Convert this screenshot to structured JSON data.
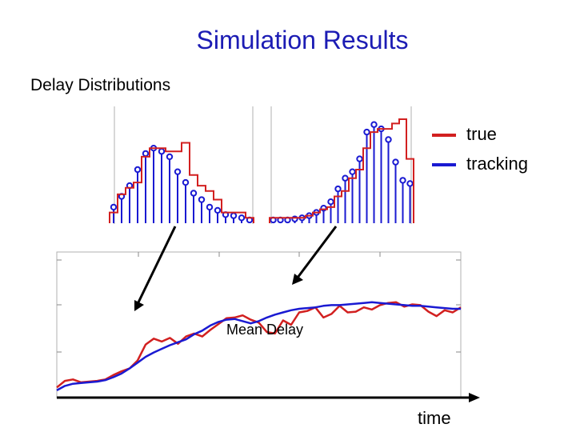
{
  "title": "Simulation Results",
  "section_label": "Delay Distributions",
  "colors": {
    "title": "#1c1cb4",
    "true": "#d22020",
    "tracking": "#1a1ad2"
  },
  "chart_data": [
    {
      "name": "delay-distribution-left",
      "type": "histogram-stem",
      "bins": [
        1,
        2,
        3,
        4,
        5,
        6,
        7,
        8,
        9,
        10,
        11,
        12,
        13,
        14,
        15,
        16,
        17,
        18
      ],
      "true_values": [
        10,
        27,
        33,
        38,
        62,
        70,
        70,
        67,
        67,
        75,
        45,
        35,
        30,
        22,
        10,
        10,
        10,
        5
      ],
      "tracking_values": [
        15,
        25,
        35,
        50,
        65,
        70,
        67,
        62,
        48,
        38,
        28,
        22,
        15,
        12,
        8,
        7,
        5,
        3
      ],
      "ylim": [
        0,
        100
      ]
    },
    {
      "name": "delay-distribution-right",
      "type": "histogram-stem",
      "bins": [
        1,
        2,
        3,
        4,
        5,
        6,
        7,
        8,
        9,
        10,
        11,
        12,
        13,
        14,
        15,
        16,
        17,
        18,
        19,
        20
      ],
      "true_values": [
        5,
        5,
        5,
        5,
        5,
        7,
        10,
        13,
        15,
        25,
        30,
        42,
        50,
        70,
        85,
        88,
        88,
        93,
        97,
        60
      ],
      "tracking_values": [
        3,
        3,
        3,
        4,
        5,
        7,
        10,
        14,
        20,
        32,
        42,
        48,
        60,
        85,
        92,
        88,
        78,
        57,
        40,
        37
      ],
      "ylim": [
        0,
        100
      ]
    },
    {
      "name": "mean-delay-over-time",
      "type": "line",
      "annotation": "Mean Delay",
      "xlabel": "time",
      "x": [
        0,
        2,
        4,
        6,
        8,
        10,
        12,
        14,
        16,
        18,
        20,
        22,
        24,
        26,
        28,
        30,
        32,
        34,
        36,
        38,
        40,
        42,
        44,
        46,
        48,
        50,
        52,
        54,
        56,
        58,
        60,
        62,
        64,
        66,
        68,
        70,
        72,
        74,
        76,
        78,
        80,
        82,
        84,
        86,
        88,
        90,
        92,
        94,
        96,
        98,
        100
      ],
      "series": [
        {
          "name": "true",
          "values": [
            14,
            23,
            25,
            21,
            22,
            23,
            25,
            31,
            36,
            40,
            51,
            73,
            81,
            77,
            82,
            74,
            84,
            88,
            84,
            93,
            101,
            109,
            110,
            113,
            107,
            103,
            90,
            88,
            106,
            100,
            117,
            119,
            124,
            110,
            115,
            126,
            117,
            118,
            124,
            121,
            127,
            130,
            131,
            125,
            128,
            127,
            118,
            112,
            120,
            117,
            124
          ]
        },
        {
          "name": "tracking",
          "values": [
            10,
            16,
            19,
            20,
            21,
            22,
            24,
            28,
            33,
            40,
            48,
            56,
            62,
            67,
            72,
            76,
            80,
            87,
            92,
            99,
            104,
            107,
            108,
            105,
            102,
            105,
            110,
            114,
            117,
            120,
            122,
            123,
            124,
            126,
            127,
            127,
            128,
            129,
            130,
            131,
            130,
            129,
            128,
            127,
            126,
            126,
            125,
            124,
            123,
            122,
            122
          ]
        }
      ],
      "ylim": [
        0,
        200
      ]
    }
  ],
  "legend": [
    {
      "label": "true",
      "color": "#d22020"
    },
    {
      "label": "tracking",
      "color": "#1a1ad2"
    }
  ]
}
